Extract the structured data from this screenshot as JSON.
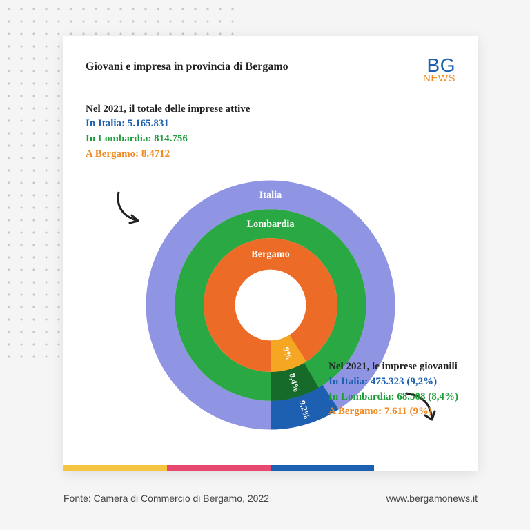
{
  "title": "Giovani e impresa in provincia di Bergamo",
  "logo": {
    "line1": "BG",
    "line2": "NEWS",
    "color1": "#1d5fb0",
    "color2": "#f08a1f"
  },
  "block1": {
    "heading": "Nel 2021, il totale delle imprese attive",
    "rows": [
      {
        "text": "In Italia: 5.165.831",
        "color": "#1d5fb0"
      },
      {
        "text": "In Lombardia: 814.756",
        "color": "#1f9d3a"
      },
      {
        "text": "A Bergamo: 8.4712",
        "color": "#f08a1f"
      }
    ]
  },
  "block2": {
    "heading": "Nel 2021, le imprese giovanili",
    "rows": [
      {
        "text": "In Italia: 475.323 (9,2%)",
        "color": "#1d5fb0"
      },
      {
        "text": "In Lombardia: 68.508 (8,4%)",
        "color": "#1f9d3a"
      },
      {
        "text": "A Bergamo: 7.611 (9%)",
        "color": "#f08a1f"
      }
    ]
  },
  "chart": {
    "type": "nested-donut",
    "background_color": "#ffffff",
    "rings": [
      {
        "label": "Italia",
        "r_out": 190,
        "r_in": 146,
        "base_color": "#8f94e3",
        "slice_color": "#1d5fb0",
        "slice_pct": 9.2,
        "slice_label": "9,2%"
      },
      {
        "label": "Lombardia",
        "r_out": 146,
        "r_in": 102,
        "base_color": "#2aa844",
        "slice_color": "#166b2a",
        "slice_pct": 8.4,
        "slice_label": "8,4%"
      },
      {
        "label": "Bergamo",
        "r_out": 102,
        "r_in": 54,
        "base_color": "#ec6b26",
        "slice_color": "#f5a623",
        "slice_pct": 9.0,
        "slice_label": "9%"
      }
    ],
    "slice_start_angle_deg": 90,
    "label_fontsize": 15,
    "slice_label_fontsize": 13
  },
  "bar_strip": [
    {
      "color": "#f5c542",
      "width_pct": 25
    },
    {
      "color": "#e8476f",
      "width_pct": 25
    },
    {
      "color": "#1d5fb0",
      "width_pct": 25
    },
    {
      "color": "#ffffff",
      "width_pct": 25
    }
  ],
  "footer": {
    "left": "Fonte: Camera di Commercio di Bergamo, 2022",
    "right": "www.bergamonews.it"
  }
}
